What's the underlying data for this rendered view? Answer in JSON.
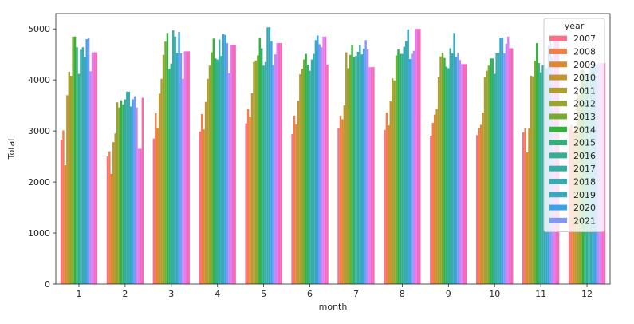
{
  "chart_data": {
    "type": "bar",
    "title": "",
    "xlabel": "month",
    "ylabel": "Total",
    "ylim": [
      0,
      5300
    ],
    "yticks": [
      0,
      1000,
      2000,
      3000,
      4000,
      5000
    ],
    "grid": false,
    "legend": {
      "title": "year",
      "placement": "right"
    },
    "categories": [
      "1",
      "2",
      "3",
      "4",
      "5",
      "6",
      "7",
      "8",
      "9",
      "10",
      "11",
      "12"
    ],
    "series": [
      {
        "name": "2007",
        "color": "#f77189",
        "values": [
          2830,
          2500,
          2850,
          2990,
          3150,
          2940,
          3060,
          3020,
          2910,
          2920,
          2970,
          3060
        ]
      },
      {
        "name": "2008",
        "color": "#f27f4a",
        "values": [
          3010,
          2600,
          3350,
          3330,
          3430,
          3300,
          3300,
          3360,
          3160,
          3050,
          3050,
          3120
        ]
      },
      {
        "name": "2009",
        "color": "#dc8932",
        "values": [
          2330,
          2160,
          3060,
          3030,
          3280,
          3130,
          3230,
          3110,
          3320,
          3120,
          2580,
          2990
        ]
      },
      {
        "name": "2010",
        "color": "#c39532",
        "values": [
          3700,
          2780,
          3730,
          3570,
          3740,
          3590,
          3500,
          3580,
          3430,
          3360,
          3060,
          3080
        ]
      },
      {
        "name": "2011",
        "color": "#ae9d31",
        "values": [
          4160,
          2950,
          4020,
          4020,
          4350,
          4110,
          4540,
          4030,
          4050,
          4060,
          4080,
          3740
        ]
      },
      {
        "name": "2012",
        "color": "#97a431",
        "values": [
          4080,
          3560,
          4490,
          4280,
          4380,
          4220,
          4230,
          3990,
          4460,
          4180,
          4070,
          3700
        ]
      },
      {
        "name": "2013",
        "color": "#77ab31",
        "values": [
          4850,
          3460,
          4750,
          4540,
          4480,
          4400,
          4490,
          4480,
          4530,
          4280,
          4380,
          4200
        ]
      },
      {
        "name": "2014",
        "color": "#31b33e",
        "values": [
          4850,
          3600,
          4920,
          4810,
          4820,
          4510,
          4680,
          4600,
          4430,
          4420,
          4720,
          4200
        ]
      },
      {
        "name": "2015",
        "color": "#33b07a",
        "values": [
          4640,
          3520,
          4220,
          4420,
          4620,
          4300,
          4440,
          4510,
          4260,
          4420,
          4330,
          4120
        ]
      },
      {
        "name": "2016",
        "color": "#35ae93",
        "values": [
          4120,
          3620,
          4320,
          4400,
          4280,
          4180,
          4470,
          4510,
          4230,
          4120,
          4150,
          4100
        ]
      },
      {
        "name": "2017",
        "color": "#36ada4",
        "values": [
          4590,
          3770,
          4970,
          4790,
          4350,
          4400,
          4550,
          4650,
          4620,
          4520,
          4290,
          4140
        ]
      },
      {
        "name": "2018",
        "color": "#38aab0",
        "values": [
          4640,
          3770,
          4850,
          4470,
          5030,
          4510,
          4690,
          4760,
          4520,
          4530,
          4310,
          4260
        ]
      },
      {
        "name": "2019",
        "color": "#39a7bc",
        "values": [
          4450,
          3480,
          4530,
          4900,
          5030,
          4780,
          4500,
          4990,
          4920,
          4830,
          4230,
          4310
        ]
      },
      {
        "name": "2020",
        "color": "#3ba3ec",
        "values": [
          4800,
          3620,
          4940,
          4880,
          4760,
          4870,
          4610,
          4410,
          4450,
          4830,
          4680,
          4290
        ]
      },
      {
        "name": "2021",
        "color": "#8197f4",
        "values": [
          4820,
          3680,
          4520,
          4720,
          4290,
          4700,
          4780,
          4510,
          4530,
          4520,
          4760,
          4300
        ]
      },
      {
        "name": "",
        "color": "#b98cf4",
        "values": [
          4170,
          3460,
          4020,
          4130,
          4500,
          4640,
          4600,
          4570,
          4390,
          4710,
          4440,
          4330
        ]
      },
      {
        "name": "",
        "color": "#e27df4",
        "values": [
          4540,
          2650,
          4560,
          4690,
          4720,
          4850,
          4250,
          5000,
          4310,
          4850,
          4810,
          4330
        ]
      },
      {
        "name": "",
        "color": "#f565cc",
        "values": [
          4540,
          2650,
          4560,
          4690,
          4720,
          4850,
          4250,
          5000,
          4310,
          4620,
          4810,
          4330
        ]
      },
      {
        "name": "",
        "color": "#f66bad",
        "values": [
          4540,
          3650,
          4560,
          4690,
          4720,
          4300,
          4250,
          5000,
          4310,
          4620,
          4810,
          4330
        ]
      }
    ]
  }
}
